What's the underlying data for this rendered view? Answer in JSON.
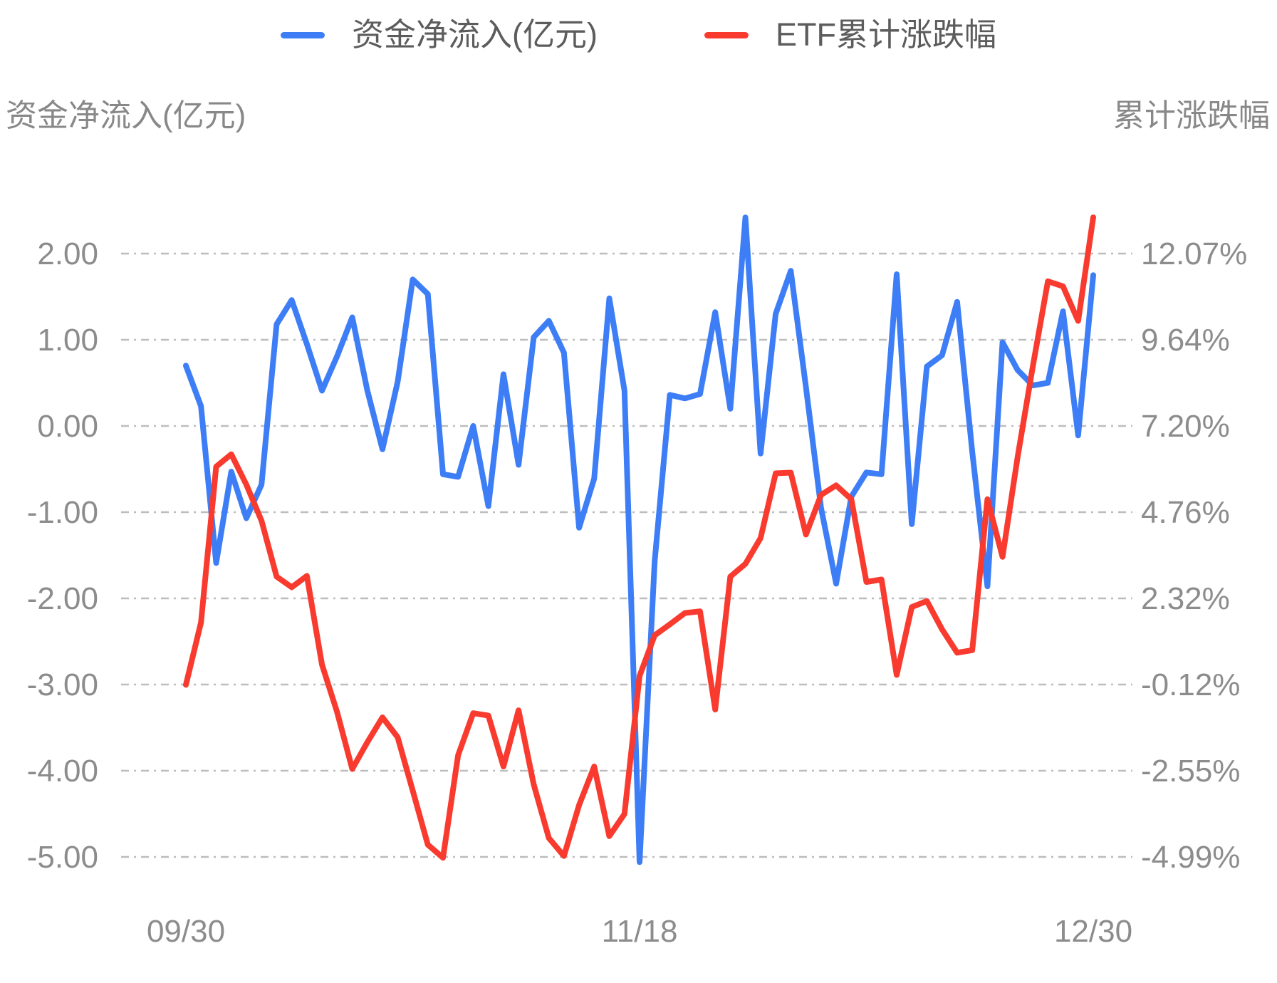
{
  "legend": {
    "series": [
      {
        "label": "资金净流入(亿元)",
        "color": "#3D7EF7"
      },
      {
        "label": "ETF累计涨跌幅",
        "color": "#F93B2F"
      }
    ]
  },
  "axes": {
    "left_title": "资金净流入(亿元)",
    "right_title": "累计涨跌幅",
    "left_tick_labels": [
      "2.00",
      "1.00",
      "0.00",
      "-1.00",
      "-2.00",
      "-3.00",
      "-4.00",
      "-5.00"
    ],
    "right_tick_labels": [
      "12.07%",
      "9.64%",
      "7.20%",
      "4.76%",
      "2.32%",
      "-0.12%",
      "-2.55%",
      "-4.99%"
    ],
    "x_tick_labels": [
      "09/30",
      "11/18",
      "12/30"
    ]
  },
  "chart_data": {
    "type": "line",
    "title": "",
    "xlabel": "",
    "ylabel_left": "资金净流入(亿元)",
    "ylabel_right": "累计涨跌幅",
    "grid": "horizontal dash-dot",
    "legend_position": "top-center",
    "x_tick_labels": [
      "09/30",
      "11/18",
      "12/30"
    ],
    "x_tick_indices": [
      0,
      30,
      60
    ],
    "left_axis": {
      "tick_values": [
        2.0,
        1.0,
        0.0,
        -1.0,
        -2.0,
        -3.0,
        -4.0,
        -5.0
      ],
      "range": [
        -5.36,
        2.93
      ]
    },
    "right_axis": {
      "tick_values": [
        12.07,
        9.64,
        7.2,
        4.76,
        2.32,
        -0.12,
        -2.55,
        -4.99
      ],
      "range": [
        -5.86,
        14.33
      ]
    },
    "series": [
      {
        "name": "资金净流入(亿元)",
        "axis": "left",
        "unit": "亿元",
        "color": "#3D7EF7",
        "values": [
          0.7,
          0.23,
          -1.59,
          -0.53,
          -1.07,
          -0.68,
          1.18,
          1.46,
          0.95,
          0.41,
          0.81,
          1.26,
          0.41,
          -0.27,
          0.51,
          1.7,
          1.53,
          -0.56,
          -0.59,
          0.0,
          -0.93,
          0.6,
          -0.45,
          1.03,
          1.22,
          0.85,
          -1.18,
          -0.61,
          1.48,
          0.41,
          -5.06,
          -1.57,
          0.36,
          0.32,
          0.37,
          1.32,
          0.2,
          2.42,
          -0.32,
          1.3,
          1.8,
          0.45,
          -0.95,
          -1.83,
          -0.82,
          -0.54,
          -0.56,
          1.76,
          -1.14,
          0.69,
          0.82,
          1.44,
          -0.3,
          -1.86,
          0.97,
          0.65,
          0.47,
          0.5,
          1.33,
          -0.11,
          1.75
        ]
      },
      {
        "name": "ETF累计涨跌幅",
        "axis": "right",
        "unit": "%",
        "color": "#F93B2F",
        "values": [
          -0.12,
          1.64,
          6.05,
          6.4,
          5.54,
          4.52,
          2.94,
          2.64,
          2.96,
          0.45,
          -0.89,
          -2.5,
          -1.74,
          -1.04,
          -1.6,
          -3.11,
          -4.64,
          -5.01,
          -2.11,
          -0.92,
          -0.99,
          -2.43,
          -0.84,
          -2.94,
          -4.45,
          -4.96,
          -3.52,
          -2.43,
          -4.4,
          -3.77,
          0.13,
          1.28,
          1.59,
          1.91,
          1.96,
          -0.82,
          2.94,
          3.3,
          4.03,
          5.86,
          5.88,
          4.13,
          5.25,
          5.52,
          5.13,
          2.79,
          2.86,
          0.16,
          2.08,
          2.25,
          1.45,
          0.79,
          0.86,
          5.13,
          3.5,
          6.32,
          8.88,
          11.29,
          11.15,
          10.17,
          13.1
        ]
      }
    ]
  }
}
